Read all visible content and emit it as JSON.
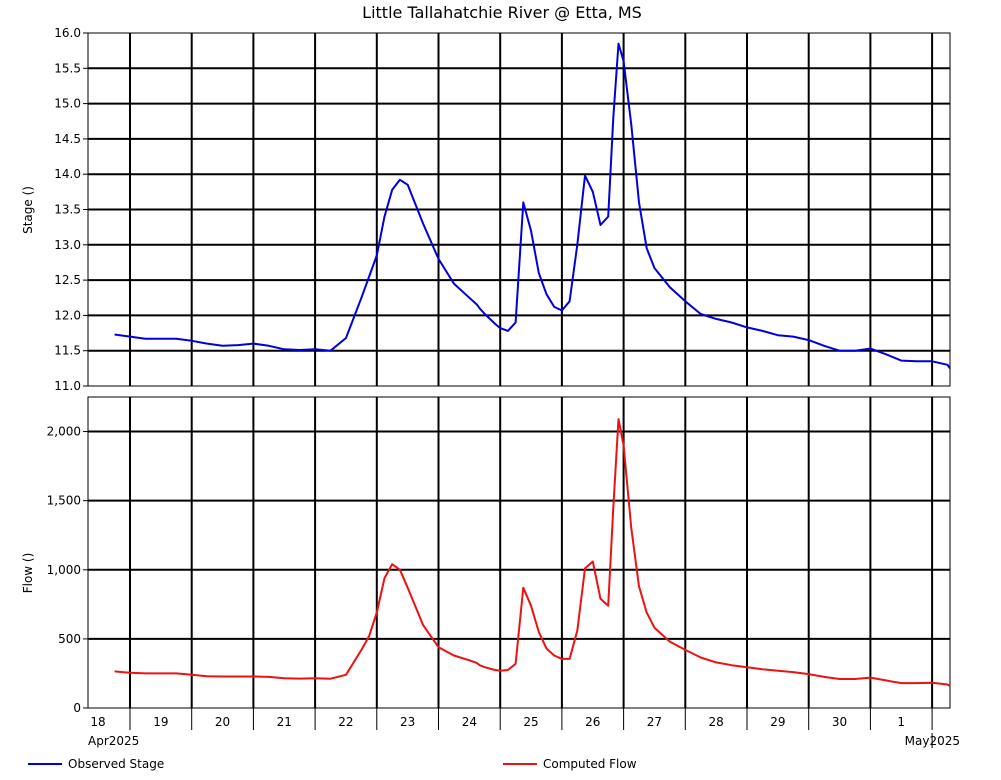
{
  "chart_data": {
    "type": "line",
    "title": "Little Tallahatchie River @ Etta, MS",
    "x_axis": {
      "start": "2025-04-18",
      "end": "2025-05-01",
      "day_tick_labels": [
        "18",
        "19",
        "20",
        "21",
        "22",
        "23",
        "24",
        "25",
        "26",
        "27",
        "28",
        "29",
        "30",
        "1"
      ],
      "month_labels": [
        "Apr2025",
        "May2025"
      ],
      "grid": true
    },
    "panels": [
      {
        "ylabel": "Stage ()",
        "ylim": [
          11.0,
          16.0
        ],
        "y_ticks": [
          "11.0",
          "11.5",
          "12.0",
          "12.5",
          "13.0",
          "13.5",
          "14.0",
          "14.5",
          "15.0",
          "15.5",
          "16.0"
        ],
        "series": [
          {
            "name": "Observed Stage",
            "color": "#0000dd",
            "x": [
              "2025-04-17T18:00",
              "2025-04-18T00:00",
              "2025-04-18T06:00",
              "2025-04-18T12:00",
              "2025-04-18T18:00",
              "2025-04-19T00:00",
              "2025-04-19T06:00",
              "2025-04-19T12:00",
              "2025-04-19T18:00",
              "2025-04-20T00:00",
              "2025-04-20T06:00",
              "2025-04-20T12:00",
              "2025-04-20T18:00",
              "2025-04-21T00:00",
              "2025-04-21T06:00",
              "2025-04-21T12:00",
              "2025-04-21T18:00",
              "2025-04-21T21:00",
              "2025-04-22T00:00",
              "2025-04-22T03:00",
              "2025-04-22T06:00",
              "2025-04-22T09:00",
              "2025-04-22T12:00",
              "2025-04-22T18:00",
              "2025-04-23T00:00",
              "2025-04-23T06:00",
              "2025-04-23T12:00",
              "2025-04-23T15:00",
              "2025-04-23T16:00",
              "2025-04-23T18:00",
              "2025-04-23T20:00",
              "2025-04-23T22:00",
              "2025-04-24T00:00",
              "2025-04-24T03:00",
              "2025-04-24T06:00",
              "2025-04-24T09:00",
              "2025-04-24T12:00",
              "2025-04-24T15:00",
              "2025-04-24T18:00",
              "2025-04-24T21:00",
              "2025-04-25T00:00",
              "2025-04-25T03:00",
              "2025-04-25T06:00",
              "2025-04-25T09:00",
              "2025-04-25T12:00",
              "2025-04-25T15:00",
              "2025-04-25T18:00",
              "2025-04-25T20:00",
              "2025-04-25T22:00",
              "2025-04-26T00:00",
              "2025-04-26T03:00",
              "2025-04-26T06:00",
              "2025-04-26T09:00",
              "2025-04-26T12:00",
              "2025-04-26T18:00",
              "2025-04-27T00:00",
              "2025-04-27T06:00",
              "2025-04-27T12:00",
              "2025-04-27T18:00",
              "2025-04-28T00:00",
              "2025-04-28T06:00",
              "2025-04-28T12:00",
              "2025-04-28T18:00",
              "2025-04-29T00:00",
              "2025-04-29T06:00",
              "2025-04-29T12:00",
              "2025-04-29T18:00",
              "2025-04-30T00:00",
              "2025-04-30T06:00",
              "2025-04-30T12:00",
              "2025-04-30T18:00",
              "2025-05-01T00:00",
              "2025-05-01T06:00",
              "2025-05-01T12:00",
              "2025-05-01T18:00"
            ],
            "y": [
              11.73,
              11.7,
              11.67,
              11.67,
              11.67,
              11.64,
              11.6,
              11.57,
              11.58,
              11.6,
              11.57,
              11.52,
              11.51,
              11.52,
              11.5,
              11.68,
              12.25,
              12.55,
              12.85,
              13.4,
              13.78,
              13.92,
              13.85,
              13.3,
              12.8,
              12.45,
              12.25,
              12.15,
              12.1,
              12.02,
              11.95,
              11.88,
              11.82,
              11.78,
              11.9,
              13.6,
              13.2,
              12.6,
              12.3,
              12.12,
              12.07,
              12.2,
              13.0,
              13.98,
              13.75,
              13.28,
              13.4,
              14.8,
              15.85,
              15.6,
              14.7,
              13.6,
              12.95,
              12.67,
              12.4,
              12.2,
              12.02,
              11.95,
              11.9,
              11.83,
              11.78,
              11.72,
              11.7,
              11.65,
              11.57,
              11.5,
              11.5,
              11.53,
              11.45,
              11.36,
              11.35,
              11.35,
              11.3,
              11.25,
              11.25
            ]
          }
        ]
      },
      {
        "ylabel": "Flow ()",
        "ylim": [
          0,
          2250
        ],
        "y_ticks": [
          "0",
          "500",
          "1,000",
          "1,500",
          "2,000"
        ],
        "y_tick_values": [
          0,
          500,
          1000,
          1500,
          2000
        ],
        "series": [
          {
            "name": "Computed Flow",
            "color": "#ee1111",
            "x": [
              "2025-04-17T18:00",
              "2025-04-18T00:00",
              "2025-04-18T06:00",
              "2025-04-18T12:00",
              "2025-04-18T18:00",
              "2025-04-19T00:00",
              "2025-04-19T06:00",
              "2025-04-19T12:00",
              "2025-04-19T18:00",
              "2025-04-20T00:00",
              "2025-04-20T06:00",
              "2025-04-20T12:00",
              "2025-04-20T18:00",
              "2025-04-21T00:00",
              "2025-04-21T06:00",
              "2025-04-21T12:00",
              "2025-04-21T18:00",
              "2025-04-21T21:00",
              "2025-04-22T00:00",
              "2025-04-22T03:00",
              "2025-04-22T06:00",
              "2025-04-22T09:00",
              "2025-04-22T12:00",
              "2025-04-22T18:00",
              "2025-04-23T00:00",
              "2025-04-23T06:00",
              "2025-04-23T12:00",
              "2025-04-23T15:00",
              "2025-04-23T16:00",
              "2025-04-23T18:00",
              "2025-04-23T20:00",
              "2025-04-23T22:00",
              "2025-04-24T00:00",
              "2025-04-24T03:00",
              "2025-04-24T06:00",
              "2025-04-24T09:00",
              "2025-04-24T12:00",
              "2025-04-24T15:00",
              "2025-04-24T18:00",
              "2025-04-24T21:00",
              "2025-04-25T00:00",
              "2025-04-25T03:00",
              "2025-04-25T06:00",
              "2025-04-25T09:00",
              "2025-04-25T12:00",
              "2025-04-25T15:00",
              "2025-04-25T18:00",
              "2025-04-25T20:00",
              "2025-04-25T22:00",
              "2025-04-26T00:00",
              "2025-04-26T03:00",
              "2025-04-26T06:00",
              "2025-04-26T09:00",
              "2025-04-26T12:00",
              "2025-04-26T18:00",
              "2025-04-27T00:00",
              "2025-04-27T06:00",
              "2025-04-27T12:00",
              "2025-04-27T18:00",
              "2025-04-28T00:00",
              "2025-04-28T06:00",
              "2025-04-28T12:00",
              "2025-04-28T18:00",
              "2025-04-29T00:00",
              "2025-04-29T06:00",
              "2025-04-29T12:00",
              "2025-04-29T18:00",
              "2025-04-30T00:00",
              "2025-04-30T06:00",
              "2025-04-30T12:00",
              "2025-04-30T18:00",
              "2025-05-01T00:00",
              "2025-05-01T06:00",
              "2025-05-01T12:00",
              "2025-05-01T18:00"
            ],
            "y": [
              265,
              255,
              250,
              250,
              250,
              240,
              230,
              228,
              228,
              228,
              225,
              215,
              213,
              215,
              212,
              240,
              420,
              520,
              690,
              940,
              1040,
              1000,
              870,
              600,
              440,
              380,
              345,
              325,
              310,
              295,
              285,
              275,
              270,
              275,
              320,
              870,
              740,
              550,
              430,
              380,
              355,
              355,
              560,
              1010,
              1060,
              790,
              740,
              1450,
              2090,
              1900,
              1300,
              880,
              690,
              580,
              480,
              420,
              365,
              330,
              310,
              295,
              280,
              270,
              260,
              245,
              225,
              210,
              210,
              220,
              200,
              180,
              180,
              182,
              170,
              160,
              160
            ]
          }
        ]
      }
    ],
    "legend": {
      "placement": "bottom",
      "entries": [
        {
          "label": "Observed Stage",
          "color": "#0000dd"
        },
        {
          "label": "Computed Flow",
          "color": "#ee1111"
        }
      ]
    }
  }
}
